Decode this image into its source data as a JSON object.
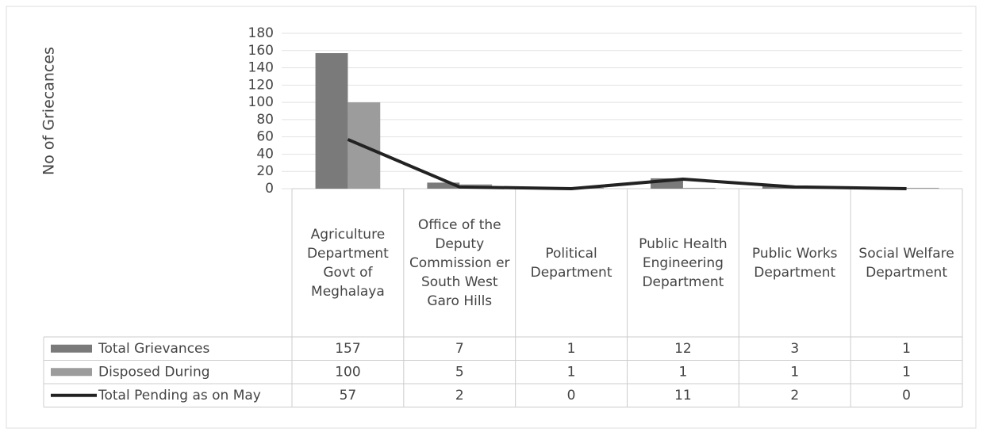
{
  "chart_data": {
    "type": "bar",
    "y_axis_label": "No of Griecances",
    "categories": [
      "Agriculture Department Govt of Meghalaya",
      "Office of the Deputy Commission er South West Garo Hills",
      "Political Department",
      "Public Health Engineering Department",
      "Public Works Department",
      "Social Welfare Department"
    ],
    "series": [
      {
        "name": "Total Grievances",
        "type": "bar",
        "color": "#7a7a7a",
        "values": [
          157,
          7,
          1,
          12,
          3,
          1
        ]
      },
      {
        "name": "Disposed During",
        "type": "bar",
        "color": "#9c9c9c",
        "values": [
          100,
          5,
          1,
          1,
          1,
          1
        ]
      },
      {
        "name": "Total Pending as on May",
        "type": "line",
        "color": "#222222",
        "values": [
          57,
          2,
          0,
          11,
          2,
          0
        ]
      }
    ],
    "ylim": [
      0,
      180
    ],
    "yticks": [
      0,
      20,
      40,
      60,
      80,
      100,
      120,
      140,
      160,
      180
    ],
    "grid": true,
    "data_table": true
  }
}
